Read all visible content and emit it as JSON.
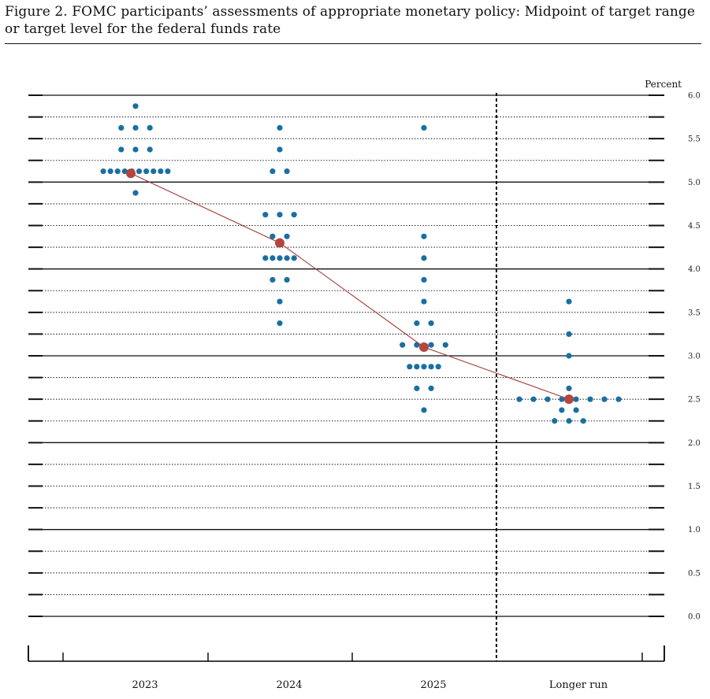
{
  "title": "Figure 2.  FOMC participants’ assessments of appropriate monetary policy:  Midpoint of target range or target level for the federal funds rate",
  "colors": {
    "dot": "#1a6fa0",
    "median": "#b5463f",
    "median_line": "#a23b36",
    "grid": "#111111"
  },
  "chart_data": {
    "type": "scatter",
    "title": "Figure 2.  FOMC participants’ assessments of appropriate monetary policy:  Midpoint of target range or target level for the federal funds rate",
    "ylabel": "Percent",
    "xlabel": "",
    "ylim": [
      0.0,
      6.0
    ],
    "y_tick_step": 0.25,
    "y_tick_labels": [
      "0.0",
      "0.5",
      "1.0",
      "1.5",
      "2.0",
      "2.5",
      "3.0",
      "3.5",
      "4.0",
      "4.5",
      "5.0",
      "5.5",
      "6.0"
    ],
    "grid": true,
    "categories": [
      "2023",
      "2024",
      "2025",
      "Longer run"
    ],
    "participant_projections": [
      {
        "category": "2023",
        "levels": [
          {
            "rate": 5.875,
            "count": 1
          },
          {
            "rate": 5.625,
            "count": 3
          },
          {
            "rate": 5.375,
            "count": 3
          },
          {
            "rate": 5.125,
            "count": 10
          },
          {
            "rate": 4.875,
            "count": 1
          }
        ]
      },
      {
        "category": "2024",
        "levels": [
          {
            "rate": 5.625,
            "count": 1
          },
          {
            "rate": 5.375,
            "count": 1
          },
          {
            "rate": 5.125,
            "count": 2
          },
          {
            "rate": 4.625,
            "count": 3
          },
          {
            "rate": 4.375,
            "count": 2
          },
          {
            "rate": 4.125,
            "count": 5
          },
          {
            "rate": 3.875,
            "count": 2
          },
          {
            "rate": 3.625,
            "count": 1
          },
          {
            "rate": 3.375,
            "count": 1
          }
        ]
      },
      {
        "category": "2025",
        "levels": [
          {
            "rate": 5.625,
            "count": 1
          },
          {
            "rate": 4.375,
            "count": 1
          },
          {
            "rate": 4.125,
            "count": 1
          },
          {
            "rate": 3.875,
            "count": 1
          },
          {
            "rate": 3.625,
            "count": 1
          },
          {
            "rate": 3.375,
            "count": 2
          },
          {
            "rate": 3.125,
            "count": 4
          },
          {
            "rate": 2.875,
            "count": 5
          },
          {
            "rate": 2.625,
            "count": 2
          },
          {
            "rate": 2.375,
            "count": 1
          }
        ]
      },
      {
        "category": "Longer run",
        "levels": [
          {
            "rate": 3.625,
            "count": 1
          },
          {
            "rate": 3.25,
            "count": 1
          },
          {
            "rate": 3.0,
            "count": 1
          },
          {
            "rate": 2.625,
            "count": 1
          },
          {
            "rate": 2.5,
            "count": 8
          },
          {
            "rate": 2.375,
            "count": 2
          },
          {
            "rate": 2.25,
            "count": 3
          }
        ]
      }
    ],
    "median_series": [
      {
        "category": "2023",
        "value": 5.1
      },
      {
        "category": "2024",
        "value": 4.3
      },
      {
        "category": "2025",
        "value": 3.1
      },
      {
        "category": "Longer run",
        "value": 2.5
      }
    ],
    "divider": "between 2025 and Longer run"
  }
}
